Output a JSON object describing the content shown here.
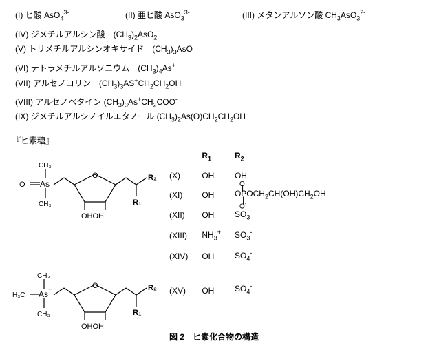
{
  "compounds_top": [
    {
      "num": "(I)",
      "name": "ヒ酸",
      "formula": "AsO<sub>4</sub><sup>3-</sup>"
    },
    {
      "num": "(II)",
      "name": "亜ヒ酸",
      "formula": "AsO<sub>3</sub><sup>3-</sup>"
    },
    {
      "num": "(III)",
      "name": "メタンアルソン酸",
      "formula": "CH<sub>3</sub>AsO<sub>3</sub><sup>2-</sup>"
    },
    {
      "num": "(IV)",
      "name": "ジメチルアルシン酸",
      "formula": "(CH<sub>3</sub>)<sub>2</sub>AsO<sub>2</sub><sup>-</sup>"
    },
    {
      "num": "(V)",
      "name": "トリメチルアルシンオキサイド",
      "formula": "(CH<sub>3</sub>)<sub>3</sub>AsO"
    },
    {
      "num": "(VI)",
      "name": "テトラメチルアルソニウム",
      "formula": "(CH<sub>3</sub>)<sub>4</sub>As<sup>+</sup>"
    },
    {
      "num": "(VII)",
      "name": "アルセノコリン",
      "formula": "(CH<sub>3</sub>)<sub>3</sub>AS<sup>+</sup>CH<sub>2</sub>CH<sub>2</sub>OH"
    },
    {
      "num": "(VIII)",
      "name": "アルセノベタイン",
      "formula": "(CH<sub>3</sub>)<sub>3</sub>As<sup>+</sup>CH<sub>2</sub>COO<sup>-</sup>"
    },
    {
      "num": "(IX)",
      "name": "ジメチルアルシノイルエタノール",
      "formula": "(CH<sub>3</sub>)<sub>2</sub>As(O)CH<sub>2</sub>CH<sub>2</sub>OH"
    }
  ],
  "arsenosugar_heading": "『ヒ素糖』",
  "table": {
    "headers": [
      "",
      "R<sub>1</sub>",
      "R<sub>2</sub>"
    ],
    "rows": [
      {
        "n": "(X)",
        "r1": "OH",
        "r2": "OH"
      },
      {
        "n": "(XI)",
        "r1": "OH",
        "r2": "OPOCH<sub>2</sub>CH(OH)CH<sub>2</sub>OH",
        "sp": true
      },
      {
        "n": "(XII)",
        "r1": "OH",
        "r2": "SO<sub>3</sub><sup>-</sup>"
      },
      {
        "n": "(XIII)",
        "r1": "NH<sub>3</sub><sup>+</sup>",
        "r2": "SO<sub>3</sub><sup>-</sup>"
      },
      {
        "n": "(XIV)",
        "r1": "OH",
        "r2": "SO<sub>4</sub><sup>-</sup>"
      },
      {
        "n": "(XV)",
        "r1": "OH",
        "r2": "SO<sub>4</sub><sup>-</sup>"
      }
    ]
  },
  "caption": "図 2　ヒ素化合物の構造",
  "struct": {
    "labels": {
      "O": "O",
      "CH3": "CH<sub>3</sub>",
      "As": "As",
      "H3C": "H<sub>3</sub>C",
      "OHOH": "OHOH",
      "R1": "R<sub>1</sub>",
      "R2": "R<sub>2</sub>"
    }
  }
}
